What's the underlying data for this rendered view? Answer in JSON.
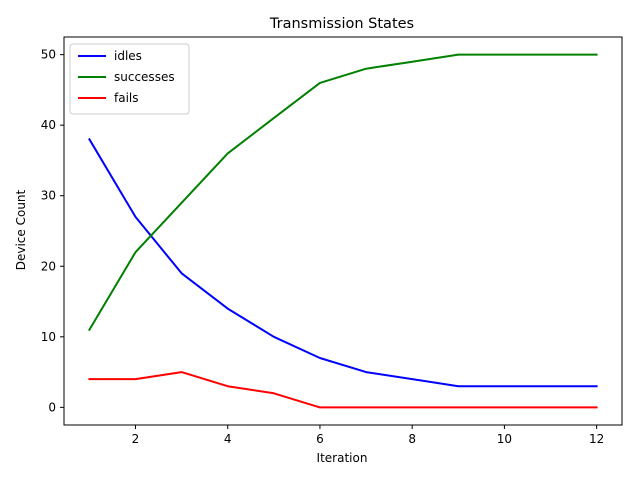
{
  "chart_data": {
    "type": "line",
    "title": "Transmission States",
    "xlabel": "Iteration",
    "ylabel": "Device Count",
    "x": [
      1,
      2,
      3,
      4,
      5,
      6,
      7,
      8,
      9,
      10,
      11,
      12
    ],
    "xlim": [
      0.45,
      12.55
    ],
    "ylim": [
      -2.5,
      52.5
    ],
    "xticks": [
      2,
      4,
      6,
      8,
      10,
      12
    ],
    "yticks": [
      0,
      10,
      20,
      30,
      40,
      50
    ],
    "grid": false,
    "legend_position": "top-left",
    "series": [
      {
        "name": "idles",
        "color": "#0000ff",
        "values": [
          38,
          27,
          19,
          14,
          10,
          7,
          5,
          4,
          3,
          3,
          3,
          3
        ]
      },
      {
        "name": "successes",
        "color": "#008000",
        "values": [
          11,
          22,
          29,
          36,
          41,
          46,
          48,
          49,
          50,
          50,
          50,
          50
        ]
      },
      {
        "name": "fails",
        "color": "#ff0000",
        "values": [
          4,
          4,
          5,
          3,
          2,
          0,
          0,
          0,
          0,
          0,
          0,
          0
        ]
      }
    ]
  }
}
